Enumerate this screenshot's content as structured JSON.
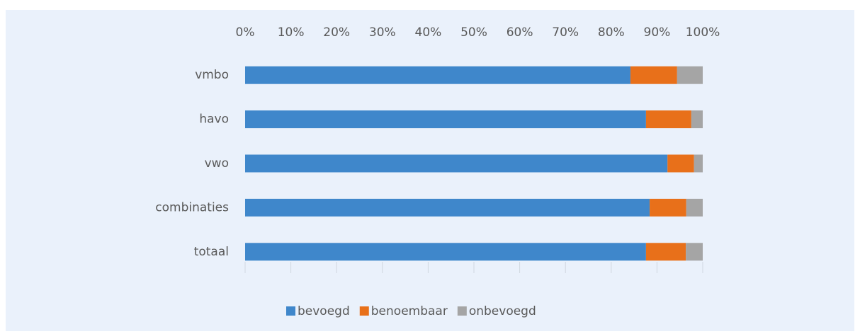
{
  "chart_data": {
    "type": "stacked-barh",
    "categories": [
      "vmbo",
      "havo",
      "vwo",
      "combinaties",
      "totaal"
    ],
    "series": [
      {
        "name": "bevoegd",
        "color": "#3f87cb",
        "values": [
          84.2,
          87.6,
          92.3,
          88.4,
          87.6
        ]
      },
      {
        "name": "benoembaar",
        "color": "#e8701a",
        "values": [
          10.2,
          9.9,
          5.8,
          8.0,
          8.7
        ]
      },
      {
        "name": "onbevoegd",
        "color": "#a5a5a5",
        "values": [
          5.6,
          2.5,
          1.9,
          3.6,
          3.7
        ]
      }
    ],
    "xlim": [
      0,
      100
    ],
    "xticks": [
      {
        "value": 0,
        "label": "0%"
      },
      {
        "value": 10,
        "label": "10%"
      },
      {
        "value": 20,
        "label": "20%"
      },
      {
        "value": 30,
        "label": "30%"
      },
      {
        "value": 40,
        "label": "40%"
      },
      {
        "value": 50,
        "label": "50%"
      },
      {
        "value": 60,
        "label": "60%"
      },
      {
        "value": 70,
        "label": "70%"
      },
      {
        "value": 80,
        "label": "80%"
      },
      {
        "value": 90,
        "label": "90%"
      },
      {
        "value": 100,
        "label": "100%"
      }
    ],
    "legend": "bottom"
  }
}
